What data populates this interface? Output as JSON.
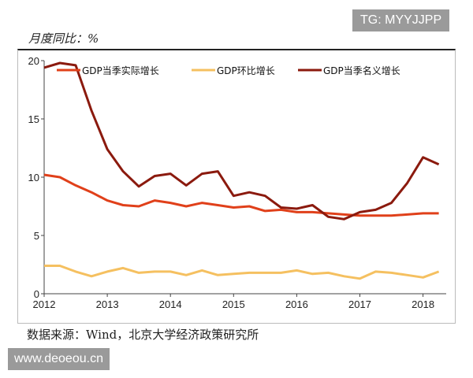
{
  "header": {
    "title": "月度同比：%",
    "badge": "TG: MYYJJPP"
  },
  "footer": {
    "source": "数据来源：Wind，北京大学经济政策研究所",
    "watermark": "www.deoeou.cn"
  },
  "chart_data": {
    "type": "line",
    "title": "",
    "xlabel": "",
    "ylabel": "",
    "x_ticks": [
      "2012",
      "2013",
      "2014",
      "2015",
      "2016",
      "2017",
      "2018"
    ],
    "y_ticks": [
      "0",
      "5",
      "10",
      "15",
      "20"
    ],
    "ylim": [
      0,
      20
    ],
    "x_start": "2012Q1",
    "x_step": "quarter",
    "legend_position": "top",
    "grid": false,
    "series": [
      {
        "name": "GDP当季实际增长",
        "color": "#e0401a",
        "values": [
          10.2,
          10.0,
          9.3,
          8.7,
          8.0,
          7.6,
          7.5,
          8.0,
          7.8,
          7.5,
          7.8,
          7.6,
          7.4,
          7.5,
          7.1,
          7.2,
          7.0,
          7.0,
          6.9,
          6.8,
          6.7,
          6.7,
          6.7,
          6.8,
          6.9,
          6.9
        ]
      },
      {
        "name": "GDP环比增长",
        "color": "#f5c060",
        "values": [
          2.4,
          2.4,
          1.9,
          1.5,
          1.9,
          2.2,
          1.8,
          1.9,
          1.9,
          1.6,
          2.0,
          1.6,
          1.7,
          1.8,
          1.8,
          1.8,
          2.0,
          1.7,
          1.8,
          1.5,
          1.3,
          1.9,
          1.8,
          1.6,
          1.4,
          1.9
        ]
      },
      {
        "name": "GDP当季名义增长",
        "color": "#8b1a0e",
        "values": [
          19.4,
          19.8,
          19.6,
          15.7,
          12.4,
          10.5,
          9.2,
          10.1,
          10.3,
          9.3,
          10.3,
          10.5,
          8.4,
          8.7,
          8.4,
          7.4,
          7.3,
          7.6,
          6.6,
          6.4,
          7.0,
          7.2,
          7.8,
          9.5,
          11.7,
          11.1
        ]
      }
    ]
  }
}
